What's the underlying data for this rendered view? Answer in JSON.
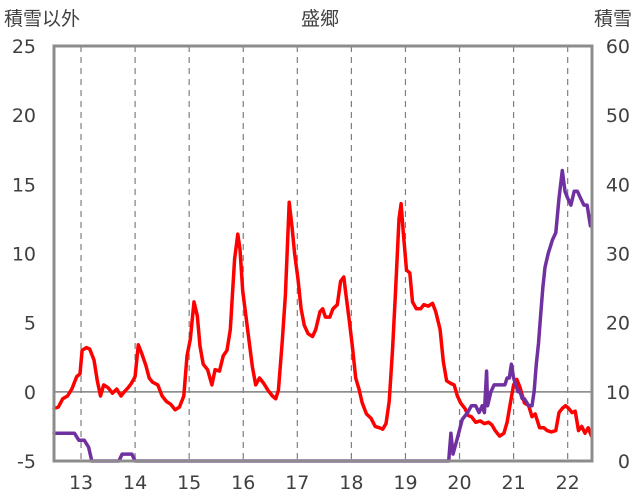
{
  "chart_data": {
    "type": "line",
    "title": "盛郷",
    "left_axis_label": "積雪以外",
    "right_axis_label": "積雪",
    "x_ticks": [
      "13",
      "14",
      "15",
      "16",
      "17",
      "18",
      "19",
      "20",
      "21",
      "22"
    ],
    "x_range": [
      12.5,
      22.45
    ],
    "y_left": {
      "ylim": [
        -5,
        25
      ],
      "ticks": [
        "-5",
        "0",
        "5",
        "10",
        "15",
        "20",
        "25"
      ]
    },
    "y_right": {
      "ylim": [
        0,
        60
      ],
      "ticks": [
        "0",
        "10",
        "20",
        "30",
        "40",
        "50",
        "60"
      ]
    },
    "grid": {
      "vertical_dashed_at": [
        13,
        14,
        15,
        16,
        17,
        18,
        19,
        20,
        21,
        22
      ],
      "horizontal_at_left_value": 0
    },
    "series": [
      {
        "key": "other",
        "axis": "left",
        "color": "#ff0000",
        "points": [
          [
            12.5,
            -1.2
          ],
          [
            12.58,
            -1.1
          ],
          [
            12.66,
            -0.5
          ],
          [
            12.75,
            -0.3
          ],
          [
            12.83,
            0.2
          ],
          [
            12.92,
            1.1
          ],
          [
            12.98,
            1.3
          ],
          [
            13.02,
            3.0
          ],
          [
            13.1,
            3.2
          ],
          [
            13.16,
            3.1
          ],
          [
            13.24,
            2.3
          ],
          [
            13.3,
            0.8
          ],
          [
            13.36,
            -0.3
          ],
          [
            13.42,
            0.5
          ],
          [
            13.5,
            0.3
          ],
          [
            13.58,
            -0.1
          ],
          [
            13.66,
            0.2
          ],
          [
            13.74,
            -0.3
          ],
          [
            13.8,
            0.0
          ],
          [
            13.87,
            0.3
          ],
          [
            13.93,
            0.6
          ],
          [
            14.0,
            1.1
          ],
          [
            14.06,
            3.4
          ],
          [
            14.12,
            2.8
          ],
          [
            14.2,
            1.9
          ],
          [
            14.26,
            1.0
          ],
          [
            14.32,
            0.7
          ],
          [
            14.42,
            0.5
          ],
          [
            14.5,
            -0.3
          ],
          [
            14.58,
            -0.7
          ],
          [
            14.66,
            -0.9
          ],
          [
            14.74,
            -1.3
          ],
          [
            14.82,
            -1.1
          ],
          [
            14.9,
            -0.3
          ],
          [
            14.96,
            2.6
          ],
          [
            15.02,
            3.8
          ],
          [
            15.09,
            6.5
          ],
          [
            15.15,
            5.5
          ],
          [
            15.2,
            3.3
          ],
          [
            15.26,
            2.0
          ],
          [
            15.34,
            1.6
          ],
          [
            15.42,
            0.5
          ],
          [
            15.48,
            1.6
          ],
          [
            15.56,
            1.5
          ],
          [
            15.63,
            2.6
          ],
          [
            15.7,
            3.0
          ],
          [
            15.76,
            4.5
          ],
          [
            15.84,
            9.6
          ],
          [
            15.9,
            11.4
          ],
          [
            15.94,
            10.3
          ],
          [
            15.99,
            7.3
          ],
          [
            16.05,
            5.5
          ],
          [
            16.11,
            3.6
          ],
          [
            16.17,
            1.8
          ],
          [
            16.23,
            0.5
          ],
          [
            16.3,
            1.0
          ],
          [
            16.38,
            0.6
          ],
          [
            16.46,
            0.1
          ],
          [
            16.54,
            -0.3
          ],
          [
            16.6,
            -0.5
          ],
          [
            16.65,
            0.1
          ],
          [
            16.72,
            3.6
          ],
          [
            16.78,
            7.0
          ],
          [
            16.85,
            13.7
          ],
          [
            16.9,
            12.0
          ],
          [
            16.95,
            10.0
          ],
          [
            17.01,
            8.2
          ],
          [
            17.07,
            6.0
          ],
          [
            17.13,
            4.8
          ],
          [
            17.2,
            4.2
          ],
          [
            17.28,
            4.0
          ],
          [
            17.34,
            4.5
          ],
          [
            17.42,
            5.8
          ],
          [
            17.47,
            6.0
          ],
          [
            17.52,
            5.4
          ],
          [
            17.6,
            5.4
          ],
          [
            17.66,
            6.0
          ],
          [
            17.74,
            6.3
          ],
          [
            17.8,
            8.0
          ],
          [
            17.86,
            8.3
          ],
          [
            17.9,
            7.0
          ],
          [
            17.96,
            5.2
          ],
          [
            18.02,
            3.2
          ],
          [
            18.08,
            1.0
          ],
          [
            18.14,
            0.2
          ],
          [
            18.2,
            -0.8
          ],
          [
            18.28,
            -1.6
          ],
          [
            18.36,
            -1.9
          ],
          [
            18.44,
            -2.5
          ],
          [
            18.52,
            -2.6
          ],
          [
            18.58,
            -2.7
          ],
          [
            18.64,
            -2.3
          ],
          [
            18.7,
            -0.7
          ],
          [
            18.76,
            3.0
          ],
          [
            18.82,
            7.5
          ],
          [
            18.88,
            12.5
          ],
          [
            18.92,
            13.6
          ],
          [
            18.96,
            11.5
          ],
          [
            19.02,
            8.8
          ],
          [
            19.08,
            8.6
          ],
          [
            19.13,
            6.5
          ],
          [
            19.2,
            6.0
          ],
          [
            19.28,
            6.0
          ],
          [
            19.34,
            6.3
          ],
          [
            19.42,
            6.2
          ],
          [
            19.5,
            6.4
          ],
          [
            19.56,
            5.8
          ],
          [
            19.64,
            4.5
          ],
          [
            19.7,
            2.2
          ],
          [
            19.76,
            0.8
          ],
          [
            19.84,
            0.6
          ],
          [
            19.9,
            0.5
          ],
          [
            19.96,
            -0.3
          ],
          [
            20.02,
            -0.8
          ],
          [
            20.1,
            -1.2
          ],
          [
            20.16,
            -1.7
          ],
          [
            20.22,
            -1.8
          ],
          [
            20.3,
            -2.2
          ],
          [
            20.38,
            -2.1
          ],
          [
            20.46,
            -2.3
          ],
          [
            20.54,
            -2.2
          ],
          [
            20.6,
            -2.4
          ],
          [
            20.66,
            -2.8
          ],
          [
            20.74,
            -3.2
          ],
          [
            20.82,
            -3.0
          ],
          [
            20.88,
            -2.2
          ],
          [
            20.94,
            -0.8
          ],
          [
            21.0,
            0.5
          ],
          [
            21.06,
            0.9
          ],
          [
            21.12,
            0.3
          ],
          [
            21.2,
            -0.8
          ],
          [
            21.28,
            -1.0
          ],
          [
            21.34,
            -1.8
          ],
          [
            21.4,
            -1.6
          ],
          [
            21.48,
            -2.6
          ],
          [
            21.56,
            -2.6
          ],
          [
            21.62,
            -2.8
          ],
          [
            21.7,
            -2.9
          ],
          [
            21.78,
            -2.8
          ],
          [
            21.84,
            -1.5
          ],
          [
            21.9,
            -1.2
          ],
          [
            21.96,
            -1.0
          ],
          [
            22.02,
            -1.2
          ],
          [
            22.08,
            -1.5
          ],
          [
            22.14,
            -1.4
          ],
          [
            22.2,
            -2.8
          ],
          [
            22.26,
            -2.5
          ],
          [
            22.32,
            -3.0
          ],
          [
            22.38,
            -2.6
          ],
          [
            22.44,
            -3.2
          ]
        ]
      },
      {
        "key": "snow",
        "axis": "right",
        "color": "#7030a0",
        "points": [
          [
            12.5,
            4.0
          ],
          [
            12.88,
            4.0
          ],
          [
            12.96,
            3.0
          ],
          [
            13.06,
            3.0
          ],
          [
            13.14,
            2.0
          ],
          [
            13.2,
            0.0
          ],
          [
            13.7,
            0.0
          ],
          [
            13.76,
            1.0
          ],
          [
            13.94,
            1.0
          ],
          [
            14.0,
            0.0
          ],
          [
            19.8,
            0.0
          ],
          [
            19.84,
            4.0
          ],
          [
            19.88,
            1.0
          ],
          [
            19.95,
            3.0
          ],
          [
            20.05,
            6.0
          ],
          [
            20.15,
            7.0
          ],
          [
            20.22,
            8.0
          ],
          [
            20.3,
            8.0
          ],
          [
            20.36,
            7.0
          ],
          [
            20.42,
            8.0
          ],
          [
            20.46,
            7.0
          ],
          [
            20.5,
            13.0
          ],
          [
            20.52,
            8.0
          ],
          [
            20.58,
            10.0
          ],
          [
            20.64,
            11.0
          ],
          [
            20.74,
            11.0
          ],
          [
            20.84,
            11.0
          ],
          [
            20.88,
            12.0
          ],
          [
            20.92,
            12.0
          ],
          [
            20.96,
            14.0
          ],
          [
            21.0,
            12.0
          ],
          [
            21.04,
            11.0
          ],
          [
            21.08,
            10.0
          ],
          [
            21.12,
            10.0
          ],
          [
            21.16,
            9.0
          ],
          [
            21.2,
            9.0
          ],
          [
            21.28,
            8.0
          ],
          [
            21.34,
            8.0
          ],
          [
            21.38,
            10.0
          ],
          [
            21.42,
            14.0
          ],
          [
            21.46,
            17.0
          ],
          [
            21.5,
            21.0
          ],
          [
            21.54,
            25.0
          ],
          [
            21.58,
            28.0
          ],
          [
            21.64,
            30.0
          ],
          [
            21.72,
            32.0
          ],
          [
            21.78,
            33.0
          ],
          [
            21.84,
            38.0
          ],
          [
            21.9,
            42.0
          ],
          [
            21.95,
            39.0
          ],
          [
            22.0,
            38.0
          ],
          [
            22.06,
            37.0
          ],
          [
            22.12,
            39.0
          ],
          [
            22.18,
            39.0
          ],
          [
            22.24,
            38.0
          ],
          [
            22.3,
            37.0
          ],
          [
            22.36,
            37.0
          ],
          [
            22.42,
            34.0
          ]
        ]
      }
    ]
  }
}
